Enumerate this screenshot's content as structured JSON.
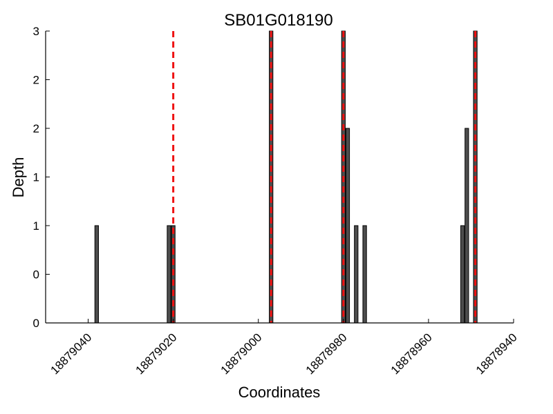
{
  "chart_data": {
    "type": "bar",
    "title": "SB01G018190",
    "xlabel": "Coordinates",
    "ylabel": "Depth",
    "x_reversed": true,
    "xlim": [
      18879050,
      18878940
    ],
    "ylim": [
      0,
      3
    ],
    "x_ticks": [
      18879040,
      18879020,
      18879000,
      18878980,
      18878960,
      18878940
    ],
    "y_ticks": [
      0,
      0.5,
      1,
      1.5,
      2,
      2.5,
      3
    ],
    "y_tick_labels": [
      "0",
      "0",
      "1",
      "1",
      "2",
      "2",
      "3"
    ],
    "grid": false,
    "bar_color": "#4d4d4d",
    "marker_color": "#ee1111",
    "bars": [
      {
        "x": 18879038,
        "value": 1
      },
      {
        "x": 18879021,
        "value": 1
      },
      {
        "x": 18879020,
        "value": 1
      },
      {
        "x": 18878997,
        "value": 3
      },
      {
        "x": 18878980,
        "value": 3
      },
      {
        "x": 18878979,
        "value": 2
      },
      {
        "x": 18878977,
        "value": 1
      },
      {
        "x": 18878975,
        "value": 1
      },
      {
        "x": 18878952,
        "value": 1
      },
      {
        "x": 18878951,
        "value": 2
      },
      {
        "x": 18878949,
        "value": 3
      }
    ],
    "markers": [
      18879020,
      18878997,
      18878980,
      18878949
    ]
  }
}
